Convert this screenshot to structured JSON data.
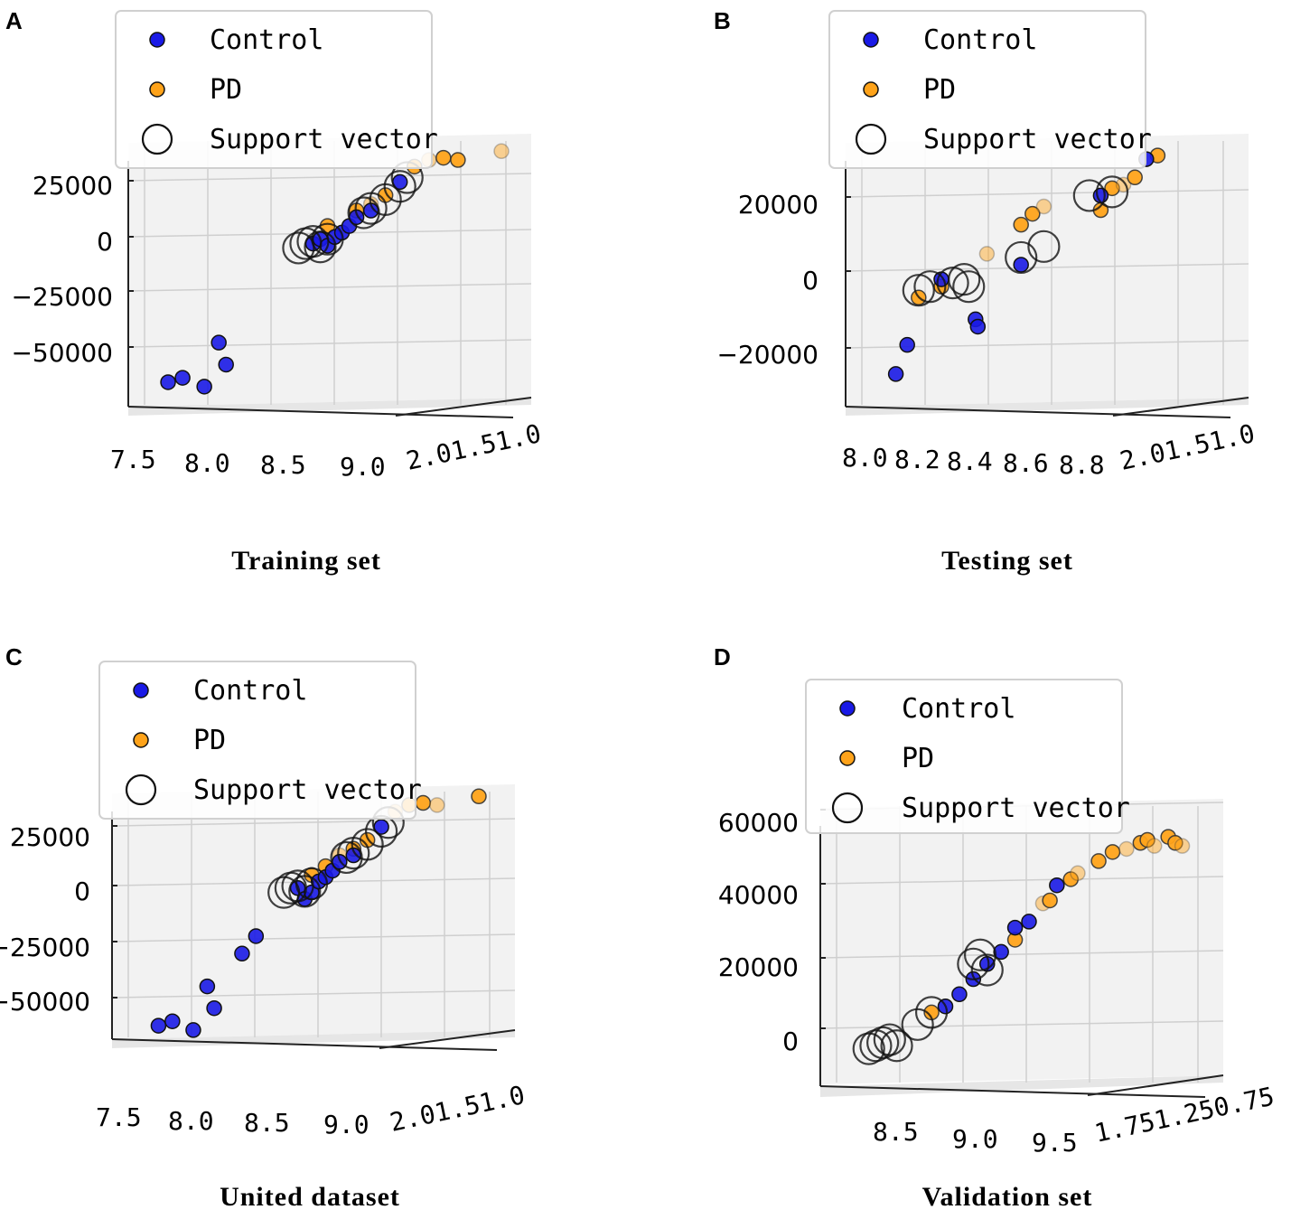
{
  "legend": {
    "control_label": "Control",
    "pd_label": "PD",
    "sv_label": "Support vector"
  },
  "colors": {
    "control": "#1a1ae6",
    "pd": "#ffa31a",
    "support_vector_edge": "#111111",
    "grid": "#cfcfcf",
    "pane": "#f2f2f2"
  },
  "panels": [
    {
      "letter": "A",
      "caption": "Training  set",
      "chart_data": {
        "type": "scatter",
        "title": "Training set",
        "z_ticks": [
          "25000",
          "0",
          "−25000",
          "−50000"
        ],
        "x_ticks": [
          "7.5",
          "8.0",
          "8.5",
          "9.0"
        ],
        "y_ticks": [
          "2.0",
          "1.5",
          "1.0"
        ],
        "series": [
          {
            "name": "Control",
            "points": [
              [
                7.6,
                -63000
              ],
              [
                7.7,
                -61000
              ],
              [
                7.85,
                -65000
              ],
              [
                7.95,
                -45000
              ],
              [
                8.0,
                -55000
              ],
              [
                8.6,
                0
              ],
              [
                8.65,
                2000
              ],
              [
                8.7,
                -1000
              ],
              [
                8.75,
                3000
              ],
              [
                8.8,
                5000
              ],
              [
                8.85,
                8000
              ],
              [
                8.9,
                12000
              ],
              [
                9.0,
                15000
              ],
              [
                9.2,
                28000
              ]
            ]
          },
          {
            "name": "PD",
            "points": [
              [
                8.7,
                8000
              ],
              [
                8.9,
                15000
              ],
              [
                9.0,
                18000
              ],
              [
                9.1,
                22000
              ],
              [
                9.3,
                35000
              ],
              [
                9.4,
                38000
              ],
              [
                9.5,
                39000
              ],
              [
                9.6,
                38000
              ],
              [
                9.9,
                42000
              ]
            ]
          },
          {
            "name": "Support vector",
            "points": [
              [
                8.5,
                -2000
              ],
              [
                8.55,
                0
              ],
              [
                8.6,
                1000
              ],
              [
                8.65,
                -1500
              ],
              [
                8.7,
                2000
              ],
              [
                8.95,
                14000
              ],
              [
                9.0,
                16000
              ],
              [
                9.1,
                20000
              ],
              [
                9.2,
                26000
              ],
              [
                9.25,
                30000
              ]
            ]
          }
        ],
        "zlim": [
          -70000,
          45000
        ]
      }
    },
    {
      "letter": "B",
      "caption": "Testing  set",
      "chart_data": {
        "type": "scatter",
        "title": "Testing set",
        "z_ticks": [
          "20000",
          "0",
          "−20000"
        ],
        "x_ticks": [
          "8.0",
          "8.2",
          "8.4",
          "8.6",
          "8.8"
        ],
        "y_ticks": [
          "2.0",
          "1.5",
          "1.0"
        ],
        "series": [
          {
            "name": "Control",
            "points": [
              [
                8.0,
                -28000
              ],
              [
                8.05,
                -20000
              ],
              [
                8.2,
                -2000
              ],
              [
                8.35,
                -13000
              ],
              [
                8.36,
                -15000
              ],
              [
                8.55,
                2000
              ],
              [
                8.9,
                21000
              ],
              [
                9.1,
                31000
              ]
            ]
          },
          {
            "name": "PD",
            "points": [
              [
                8.1,
                -7000
              ],
              [
                8.2,
                -4000
              ],
              [
                8.4,
                5000
              ],
              [
                8.55,
                13000
              ],
              [
                8.6,
                16000
              ],
              [
                8.65,
                18000
              ],
              [
                8.9,
                17000
              ],
              [
                8.95,
                23000
              ],
              [
                9.0,
                24000
              ],
              [
                9.05,
                26000
              ],
              [
                9.15,
                32000
              ]
            ]
          },
          {
            "name": "Support vector",
            "points": [
              [
                8.1,
                -5000
              ],
              [
                8.15,
                -4000
              ],
              [
                8.25,
                -3000
              ],
              [
                8.3,
                -2000
              ],
              [
                8.32,
                -4000
              ],
              [
                8.55,
                4000
              ],
              [
                8.65,
                7000
              ],
              [
                8.85,
                21000
              ],
              [
                8.95,
                22000
              ]
            ]
          }
        ],
        "zlim": [
          -30000,
          35000
        ]
      }
    },
    {
      "letter": "C",
      "caption": "United dataset",
      "chart_data": {
        "type": "scatter",
        "title": "United dataset",
        "z_ticks": [
          "25000",
          "0",
          "−25000",
          "−50000"
        ],
        "x_ticks": [
          "7.5",
          "8.0",
          "8.5",
          "9.0"
        ],
        "y_ticks": [
          "2.0",
          "1.5",
          "1.0"
        ],
        "series": [
          {
            "name": "Control",
            "points": [
              [
                7.6,
                -63000
              ],
              [
                7.7,
                -61000
              ],
              [
                7.85,
                -65000
              ],
              [
                7.95,
                -45000
              ],
              [
                8.0,
                -55000
              ],
              [
                8.2,
                -30000
              ],
              [
                8.3,
                -22000
              ],
              [
                8.6,
                0
              ],
              [
                8.65,
                -5000
              ],
              [
                8.7,
                -2000
              ],
              [
                8.75,
                3000
              ],
              [
                8.8,
                5000
              ],
              [
                8.85,
                8000
              ],
              [
                8.9,
                12000
              ],
              [
                9.0,
                15000
              ],
              [
                9.2,
                28000
              ]
            ]
          },
          {
            "name": "PD",
            "points": [
              [
                8.7,
                6000
              ],
              [
                8.8,
                10000
              ],
              [
                8.9,
                15000
              ],
              [
                9.0,
                18000
              ],
              [
                9.1,
                22000
              ],
              [
                9.3,
                35000
              ],
              [
                9.4,
                38000
              ],
              [
                9.5,
                39000
              ],
              [
                9.6,
                38000
              ],
              [
                9.9,
                42000
              ]
            ]
          },
          {
            "name": "Support vector",
            "points": [
              [
                8.5,
                -2000
              ],
              [
                8.55,
                0
              ],
              [
                8.6,
                1000
              ],
              [
                8.65,
                -1500
              ],
              [
                8.7,
                2000
              ],
              [
                8.95,
                14000
              ],
              [
                9.0,
                16000
              ],
              [
                9.1,
                20000
              ],
              [
                9.2,
                26000
              ],
              [
                9.25,
                30000
              ]
            ]
          }
        ],
        "zlim": [
          -70000,
          45000
        ]
      }
    },
    {
      "letter": "D",
      "caption": "Validation  set",
      "chart_data": {
        "type": "scatter",
        "title": "Validation set",
        "z_ticks": [
          "60000",
          "40000",
          "20000",
          "0"
        ],
        "x_ticks": [
          "8.5",
          "9.0",
          "9.5"
        ],
        "y_ticks": [
          "1.75",
          "1.25",
          "0.75"
        ],
        "series": [
          {
            "name": "Control",
            "points": [
              [
                9.0,
                8000
              ],
              [
                9.1,
                12000
              ],
              [
                9.2,
                17000
              ],
              [
                9.3,
                22000
              ],
              [
                9.4,
                26000
              ],
              [
                9.5,
                34000
              ],
              [
                9.6,
                36000
              ],
              [
                9.8,
                48000
              ]
            ]
          },
          {
            "name": "PD",
            "points": [
              [
                8.9,
                6000
              ],
              [
                9.5,
                30000
              ],
              [
                9.7,
                42000
              ],
              [
                9.75,
                43000
              ],
              [
                9.9,
                50000
              ],
              [
                9.95,
                52000
              ],
              [
                10.1,
                56000
              ],
              [
                10.2,
                59000
              ],
              [
                10.3,
                60000
              ],
              [
                10.4,
                62000
              ],
              [
                10.45,
                63000
              ],
              [
                10.5,
                61000
              ],
              [
                10.6,
                64000
              ],
              [
                10.65,
                62000
              ],
              [
                10.7,
                61000
              ]
            ]
          },
          {
            "name": "Support vector",
            "points": [
              [
                8.45,
                -6000
              ],
              [
                8.5,
                -5000
              ],
              [
                8.55,
                -4000
              ],
              [
                8.6,
                -3000
              ],
              [
                8.65,
                -5000
              ],
              [
                8.8,
                2000
              ],
              [
                8.9,
                6000
              ],
              [
                9.2,
                22000
              ],
              [
                9.25,
                25000
              ],
              [
                9.3,
                20000
              ]
            ]
          }
        ],
        "zlim": [
          -10000,
          70000
        ]
      }
    }
  ]
}
